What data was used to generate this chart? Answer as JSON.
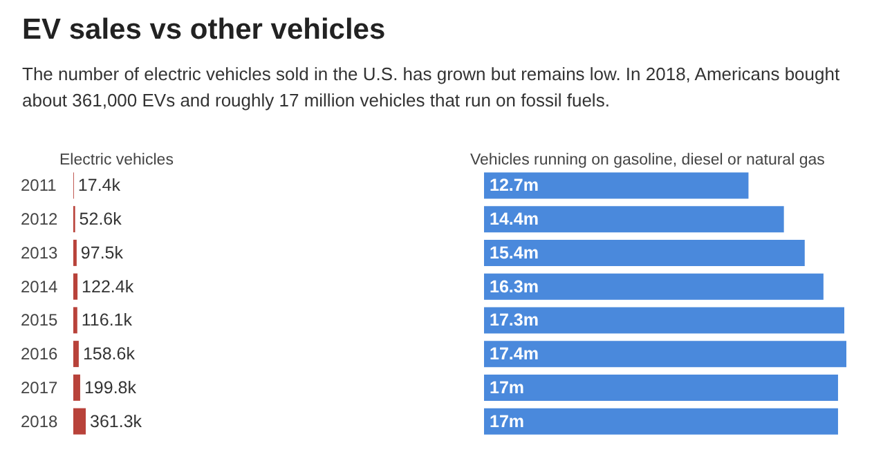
{
  "chart_data": [
    {
      "type": "bar",
      "orientation": "horizontal",
      "title": "EV sales vs other vehicles",
      "subtitle": "The number of electric vehicles sold in the U.S. has grown but remains low. In 2018, Americans bought about 361,000 EVs and roughly 17 million vehicles that run on fossil fuels.",
      "xlabel": "Electric vehicles",
      "categories": [
        "2011",
        "2012",
        "2013",
        "2014",
        "2015",
        "2016",
        "2017",
        "2018"
      ],
      "values": [
        17.4,
        52.6,
        97.5,
        122.4,
        116.1,
        158.6,
        199.8,
        361.3
      ],
      "value_labels": [
        "17.4k",
        "52.6k",
        "97.5k",
        "122.4k",
        "116.1k",
        "158.6k",
        "199.8k",
        "361.3k"
      ],
      "color": "#b8423a",
      "tick_labels": "y"
    },
    {
      "type": "bar",
      "orientation": "horizontal",
      "xlabel": "Vehicles running on gasoline, diesel or natural gas",
      "categories": [
        null,
        null,
        null,
        null,
        null,
        null,
        null,
        null
      ],
      "values": [
        12.7,
        14.4,
        15.4,
        16.3,
        17.3,
        17.4,
        17,
        17
      ],
      "value_labels": [
        "12.7m",
        "14.4m",
        "15.4m",
        "16.3m",
        "17.3m",
        "17.4m",
        "17m",
        "17m"
      ],
      "color": "#4a89dc",
      "tick_labels": false
    }
  ]
}
